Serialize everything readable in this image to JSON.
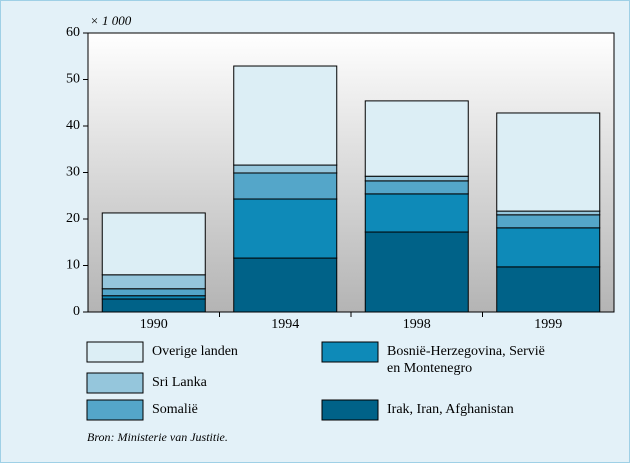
{
  "chart_data": {
    "type": "stacked_bar",
    "y_unit_label": "× 1 000",
    "categories": [
      "1990",
      "1994",
      "1998",
      "1999"
    ],
    "series": [
      {
        "name": "Irak, Iran, Afghanistan",
        "color": "#006288",
        "values": [
          2.8,
          11.6,
          17.2,
          9.7
        ]
      },
      {
        "name": "Bosnië-Herzegovina, Servië en Montenegro",
        "color": "#0e8ab8",
        "values": [
          0.7,
          12.7,
          8.2,
          8.4
        ]
      },
      {
        "name": "Somalië",
        "color": "#54a6c9",
        "values": [
          1.5,
          5.6,
          2.8,
          2.8
        ]
      },
      {
        "name": "Sri Lanka",
        "color": "#95c6dc",
        "values": [
          3.0,
          1.7,
          1.0,
          0.8
        ]
      },
      {
        "name": "Overige landen",
        "color": "#dceef5",
        "values": [
          13.3,
          21.3,
          16.2,
          21.1
        ]
      }
    ],
    "ylim": [
      0,
      60
    ],
    "yticks": [
      0,
      10,
      20,
      30,
      40,
      50,
      60
    ],
    "source": "Bron: Ministerie van Justitie."
  }
}
